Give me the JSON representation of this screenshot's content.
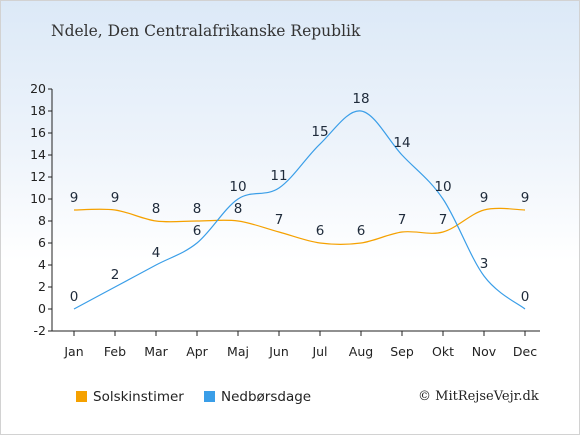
{
  "page": {
    "title": "Ndele, Den Centralafrikanske Republik",
    "credit": "© MitRejseVejr.dk"
  },
  "chart_data": {
    "type": "line",
    "categories": [
      "Jan",
      "Feb",
      "Mar",
      "Apr",
      "Maj",
      "Jun",
      "Jul",
      "Aug",
      "Sep",
      "Okt",
      "Nov",
      "Dec"
    ],
    "yticks": [
      -2,
      0,
      2,
      4,
      6,
      8,
      10,
      12,
      14,
      16,
      18,
      20
    ],
    "ylim": [
      -2,
      20
    ],
    "series": [
      {
        "name": "Solskinstimer",
        "color": "#f5a100",
        "values": [
          9,
          9,
          8,
          8,
          8,
          7,
          6,
          6,
          7,
          7,
          9,
          9
        ]
      },
      {
        "name": "Nedbørsdage",
        "color": "#3a9ee8",
        "values": [
          0,
          2,
          4,
          6,
          10,
          11,
          15,
          18,
          14,
          10,
          3,
          0
        ]
      }
    ],
    "legend_position": "bottom",
    "grid": false
  }
}
